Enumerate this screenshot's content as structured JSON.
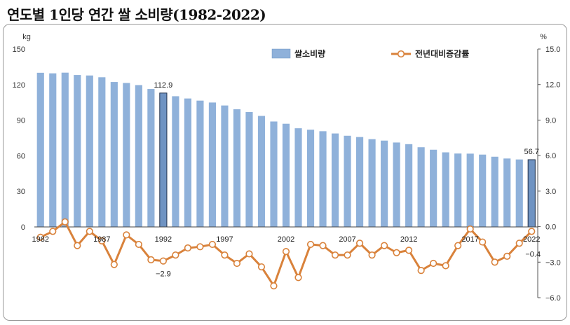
{
  "title": "연도별 1인당 연간 쌀 소비량(1982-2022)",
  "chart_data": {
    "type": "bar+line",
    "title": "연도별 1인당 연간 쌀 소비량(1982-2022)",
    "left_unit": "kg",
    "right_unit": "%",
    "left_ylim": [
      0,
      150
    ],
    "right_ylim": [
      -6.0,
      15.0
    ],
    "left_ticks": [
      "150",
      "120",
      "90",
      "60",
      "30",
      "0"
    ],
    "right_ticks": [
      "15.0",
      "12.0",
      "9.0",
      "6.0",
      "3.0",
      "0.0",
      "−3.0",
      "−6.0"
    ],
    "x_tick_labels": [
      {
        "year": 1982,
        "label": "1982"
      },
      {
        "year": 1987,
        "label": "1987"
      },
      {
        "year": 1992,
        "label": "1992"
      },
      {
        "year": 1997,
        "label": "1997"
      },
      {
        "year": 2002,
        "label": "2002"
      },
      {
        "year": 2007,
        "label": "2007"
      },
      {
        "year": 2012,
        "label": "2012"
      },
      {
        "year": 2017,
        "label": "2017"
      },
      {
        "year": 2022,
        "label": "2022"
      }
    ],
    "years": [
      1982,
      1983,
      1984,
      1985,
      1986,
      1987,
      1988,
      1989,
      1990,
      1991,
      1992,
      1993,
      1994,
      1995,
      1996,
      1997,
      1998,
      1999,
      2000,
      2001,
      2002,
      2003,
      2004,
      2005,
      2006,
      2007,
      2008,
      2009,
      2010,
      2011,
      2012,
      2013,
      2014,
      2015,
      2016,
      2017,
      2018,
      2019,
      2020,
      2021,
      2022
    ],
    "series": [
      {
        "name": "쌀소비량",
        "kind": "bar",
        "color": "#8fb1da",
        "highlight_color": "#6f93c2",
        "values": [
          130.0,
          129.5,
          130.1,
          128.1,
          127.7,
          126.2,
          122.2,
          121.4,
          119.6,
          116.3,
          112.9,
          110.2,
          108.3,
          106.5,
          104.9,
          102.4,
          99.2,
          96.9,
          93.6,
          88.9,
          87.0,
          83.2,
          82.0,
          80.7,
          78.8,
          76.9,
          75.8,
          74.0,
          72.8,
          71.2,
          69.8,
          67.2,
          65.1,
          62.9,
          61.9,
          61.8,
          61.0,
          59.2,
          57.7,
          56.9,
          56.7
        ]
      },
      {
        "name": "전년대비증감률",
        "kind": "line",
        "color": "#d9823b",
        "values": [
          -0.9,
          -0.4,
          0.4,
          -1.6,
          -0.4,
          -1.2,
          -3.2,
          -0.7,
          -1.5,
          -2.8,
          -2.9,
          -2.4,
          -1.8,
          -1.7,
          -1.5,
          -2.4,
          -3.1,
          -2.3,
          -3.4,
          -5.0,
          -2.1,
          -4.3,
          -1.5,
          -1.6,
          -2.4,
          -2.4,
          -1.4,
          -2.4,
          -1.6,
          -2.2,
          -2.0,
          -3.7,
          -3.1,
          -3.3,
          -1.6,
          -0.2,
          -1.3,
          -3.0,
          -2.5,
          -1.4,
          -0.4
        ]
      }
    ],
    "highlight_bars": [
      {
        "year": 1992,
        "label": "112.9"
      },
      {
        "year": 2022,
        "label": "56.7"
      }
    ],
    "highlight_points": [
      {
        "year": 1992,
        "label": "−2.9"
      },
      {
        "year": 2022,
        "label": "−0.4"
      }
    ],
    "legend_position": "top-right"
  }
}
